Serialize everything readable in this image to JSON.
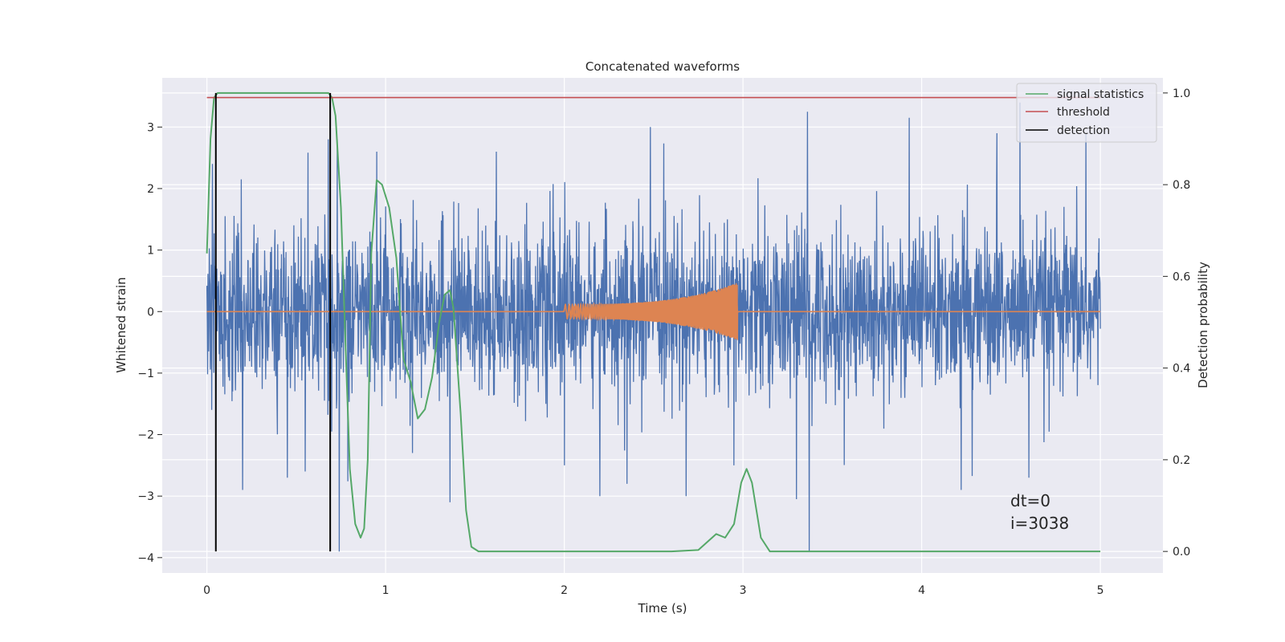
{
  "chart_data": {
    "type": "line",
    "title": "Concatenated waveforms",
    "xlabel": "Time (s)",
    "ylabel": "Whitened strain",
    "y2label": "Detection probability",
    "xlim": [
      -0.25,
      5.35
    ],
    "ylim": [
      -4.25,
      3.8
    ],
    "y2lim": [
      -0.047,
      1.033
    ],
    "xticks": [
      0,
      1,
      2,
      3,
      4,
      5
    ],
    "yticks": [
      -4,
      -3,
      -2,
      -1,
      0,
      1,
      2,
      3
    ],
    "y2ticks": [
      0.0,
      0.2,
      0.4,
      0.6,
      0.8,
      1.0
    ],
    "grid": true,
    "legend_position": "top-right",
    "legend": [
      "signal statistics",
      "threshold",
      "detection"
    ],
    "colors": {
      "strain": "#4c72b0",
      "template": "#dd8452",
      "signal_statistics": "#55a868",
      "threshold": "#c44e52",
      "detection": "#000000",
      "plot_bg": "#eaeaf2",
      "grid": "#ffffff"
    },
    "series": [
      {
        "name": "",
        "role": "strain",
        "description_points": "noise",
        "x_range": [
          0,
          5
        ],
        "amplitude_std": 0.65,
        "spikes": [
          [
            0.03,
            2.4
          ],
          [
            0.05,
            -2.45
          ],
          [
            0.2,
            -2.9
          ],
          [
            0.45,
            -2.7
          ],
          [
            0.55,
            -2.6
          ],
          [
            0.68,
            2.8
          ],
          [
            0.73,
            2.8
          ],
          [
            0.74,
            -3.9
          ],
          [
            0.95,
            2.6
          ],
          [
            1.15,
            -2.3
          ],
          [
            1.36,
            -3.1
          ],
          [
            1.62,
            2.6
          ],
          [
            2.0,
            -2.5
          ],
          [
            2.35,
            -2.8
          ],
          [
            2.95,
            -2.5
          ],
          [
            3.3,
            -3.05
          ],
          [
            3.36,
            3.25
          ],
          [
            3.37,
            -3.9
          ],
          [
            3.93,
            3.15
          ],
          [
            4.22,
            -2.9
          ],
          [
            4.42,
            2.9
          ],
          [
            4.55,
            3.4
          ],
          [
            4.6,
            -2.7
          ],
          [
            4.92,
            2.9
          ]
        ]
      },
      {
        "name": "",
        "role": "template",
        "x_range": [
          2.0,
          2.97
        ],
        "amplitude_start": 0.1,
        "amplitude_end": 0.45
      },
      {
        "name": "signal statistics",
        "axis": "right",
        "x": [
          0.0,
          0.02,
          0.04,
          0.06,
          0.1,
          0.4,
          0.65,
          0.68,
          0.7,
          0.72,
          0.75,
          0.78,
          0.8,
          0.83,
          0.86,
          0.88,
          0.9,
          0.92,
          0.95,
          0.98,
          1.02,
          1.06,
          1.1,
          1.14,
          1.18,
          1.22,
          1.26,
          1.3,
          1.33,
          1.36,
          1.38,
          1.42,
          1.45,
          1.48,
          1.52,
          1.6,
          2.0,
          2.6,
          2.75,
          2.85,
          2.9,
          2.95,
          2.99,
          3.02,
          3.05,
          3.1,
          3.15,
          3.3,
          4.0,
          5.0
        ],
        "y": [
          0.65,
          0.9,
          0.99,
          1.0,
          1.0,
          1.0,
          1.0,
          1.0,
          0.99,
          0.95,
          0.75,
          0.4,
          0.18,
          0.06,
          0.03,
          0.05,
          0.2,
          0.65,
          0.81,
          0.8,
          0.75,
          0.64,
          0.42,
          0.37,
          0.29,
          0.31,
          0.38,
          0.5,
          0.56,
          0.57,
          0.53,
          0.3,
          0.09,
          0.01,
          0.0,
          0.0,
          0.0,
          0.0,
          0.003,
          0.038,
          0.03,
          0.06,
          0.15,
          0.18,
          0.15,
          0.03,
          0.0,
          0.0,
          0.0,
          0.0
        ]
      },
      {
        "name": "threshold",
        "axis": "right",
        "x": [
          0.0,
          5.0
        ],
        "y": [
          0.99,
          0.99
        ]
      },
      {
        "name": "detection",
        "axis": "right",
        "x": [
          0.05,
          0.69
        ],
        "y_from": 0.0,
        "y_to": 1.0
      }
    ],
    "annotations": [
      "dt=0",
      "i=3038"
    ]
  }
}
